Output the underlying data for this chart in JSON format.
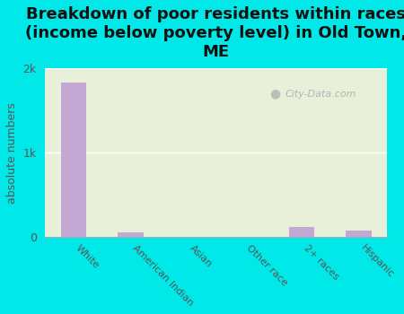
{
  "categories": [
    "White",
    "American Indian",
    "Asian",
    "Other race",
    "2+ races",
    "Hispanic"
  ],
  "values": [
    1830,
    55,
    0,
    0,
    110,
    75
  ],
  "bar_color": "#c4a8d4",
  "title": "Breakdown of poor residents within races\n(income below poverty level) in Old Town,\nME",
  "ylabel": "absolute numbers",
  "ylim": [
    0,
    2000
  ],
  "yticks": [
    0,
    1000,
    2000
  ],
  "ytick_labels": [
    "0",
    "1k",
    "2k"
  ],
  "background_color": "#00e8e8",
  "plot_bg_color": "#e8f0da",
  "title_fontsize": 13,
  "ylabel_fontsize": 9,
  "watermark": "City-Data.com",
  "grid_color": "#d8e8c8",
  "bar_width": 0.45
}
